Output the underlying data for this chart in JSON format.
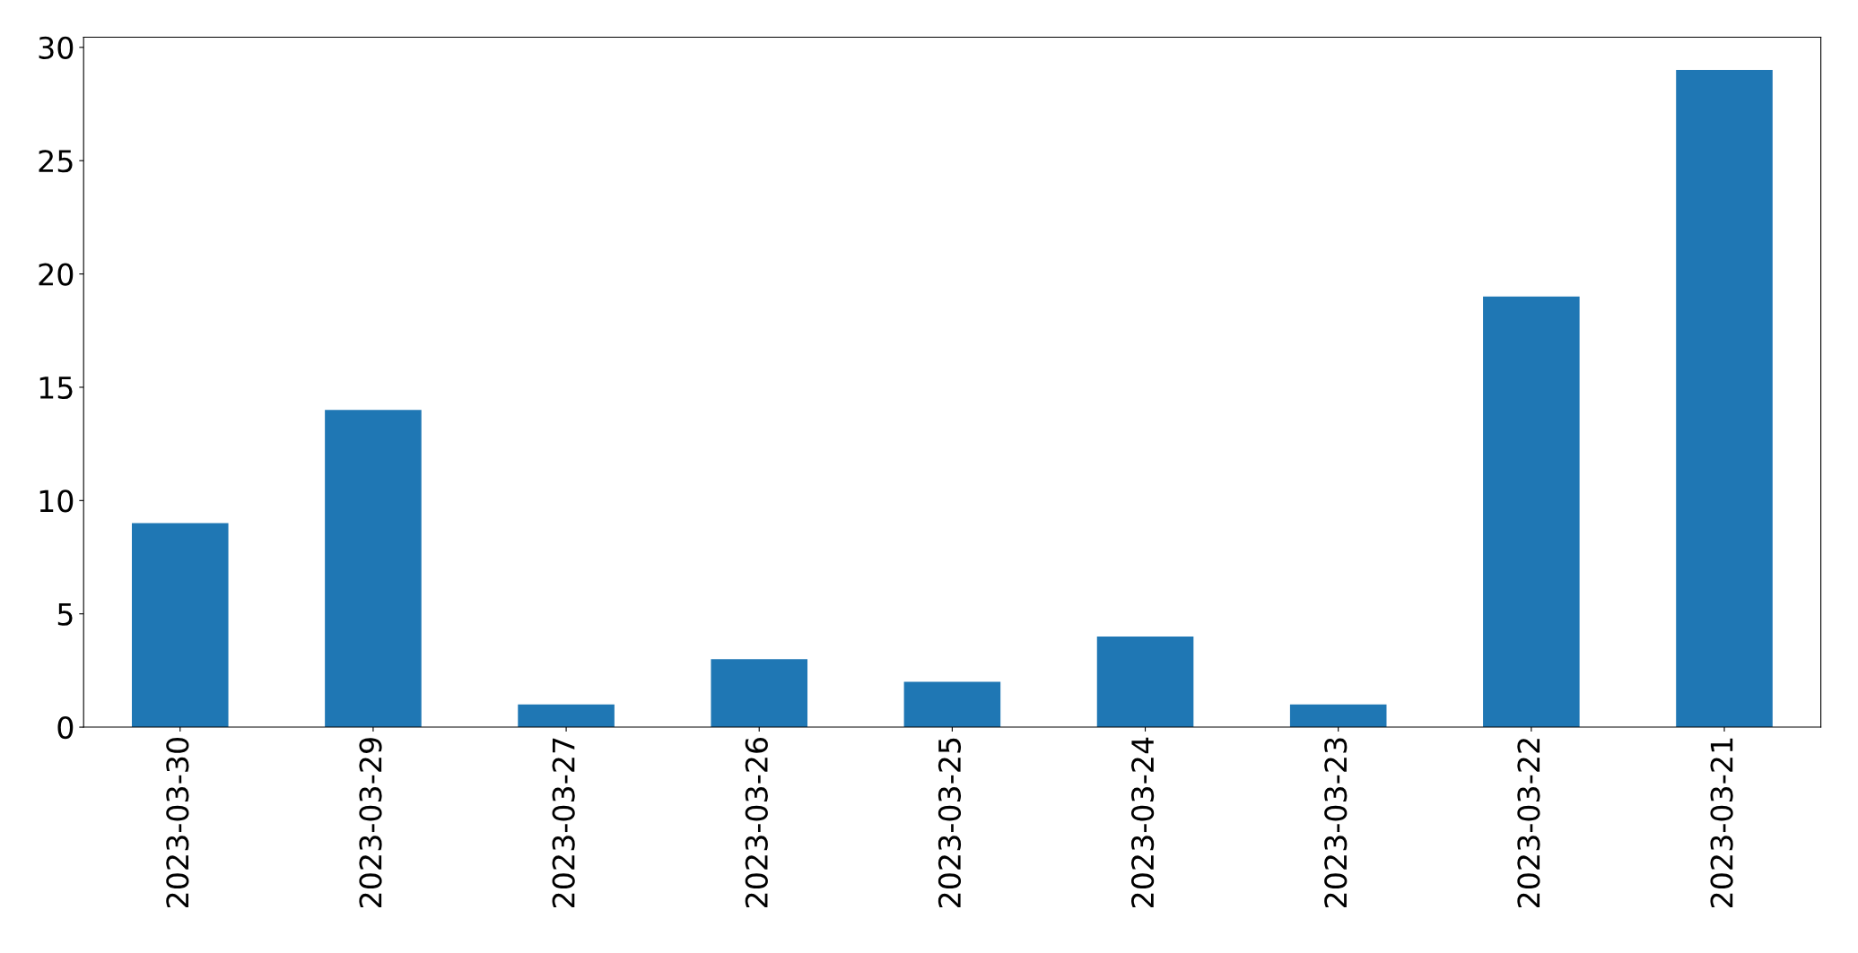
{
  "chart_data": {
    "type": "bar",
    "categories": [
      "2023-03-30",
      "2023-03-29",
      "2023-03-27",
      "2023-03-26",
      "2023-03-25",
      "2023-03-24",
      "2023-03-23",
      "2023-03-22",
      "2023-03-21"
    ],
    "values": [
      9,
      14,
      1,
      3,
      2,
      4,
      1,
      19,
      29
    ],
    "color": "#1f77b4",
    "ylim": [
      0,
      30.45
    ],
    "yticks": [
      0,
      5,
      10,
      15,
      20,
      25,
      30
    ],
    "grid": false
  }
}
